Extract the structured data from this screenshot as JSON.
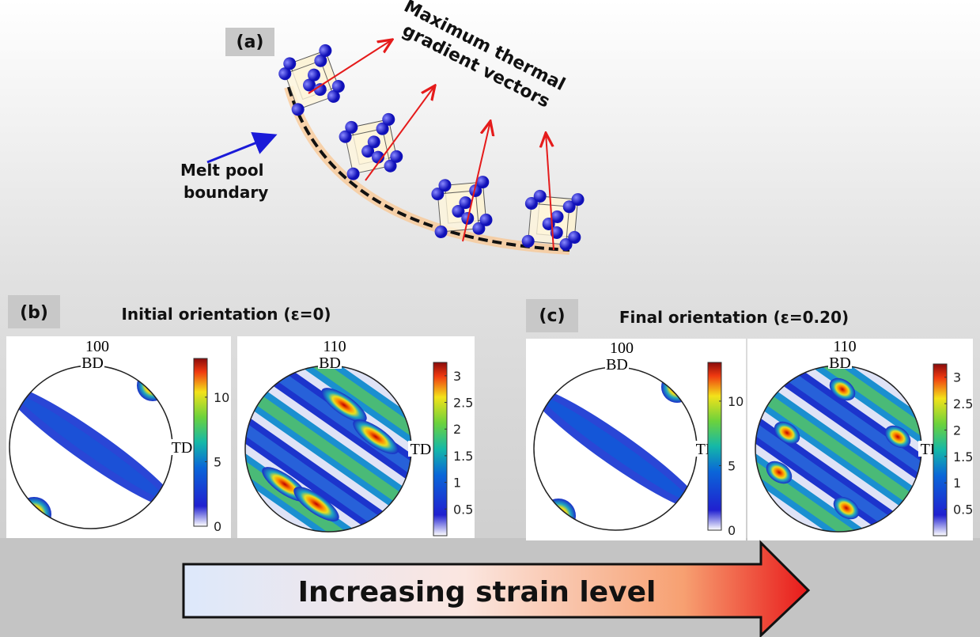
{
  "panel_a": {
    "label": "(a)",
    "vector_label": [
      "Maximum thermal",
      "gradient vectors"
    ],
    "boundary_label": [
      "Melt pool",
      "boundary"
    ]
  },
  "panel_b": {
    "label": "(b)",
    "title": "Initial orientation (ε=0)",
    "pole_figures": [
      {
        "plane": "100",
        "top_axis": "BD",
        "side_axis": "TD",
        "colorbar": {
          "lim": [
            0,
            13
          ],
          "ticks": [
            0,
            5,
            10
          ]
        }
      },
      {
        "plane": "110",
        "top_axis": "BD",
        "side_axis": "TD",
        "colorbar": {
          "lim": [
            0,
            3.25
          ],
          "ticks": [
            0.5,
            1,
            1.5,
            2,
            2.5,
            3
          ]
        }
      }
    ]
  },
  "panel_c": {
    "label": "(c)",
    "title": "Final orientation (ε=0.20)",
    "pole_figures": [
      {
        "plane": "100",
        "top_axis": "BD",
        "side_axis": "TD",
        "colorbar": {
          "lim": [
            0,
            13
          ],
          "ticks": [
            0,
            5,
            10
          ]
        }
      },
      {
        "plane": "110",
        "top_axis": "BD",
        "side_axis": "TD",
        "colorbar": {
          "lim": [
            0,
            3.25
          ],
          "ticks": [
            0.5,
            1,
            1.5,
            2,
            2.5,
            3
          ]
        }
      }
    ]
  },
  "arrow_label": "Increasing strain level"
}
